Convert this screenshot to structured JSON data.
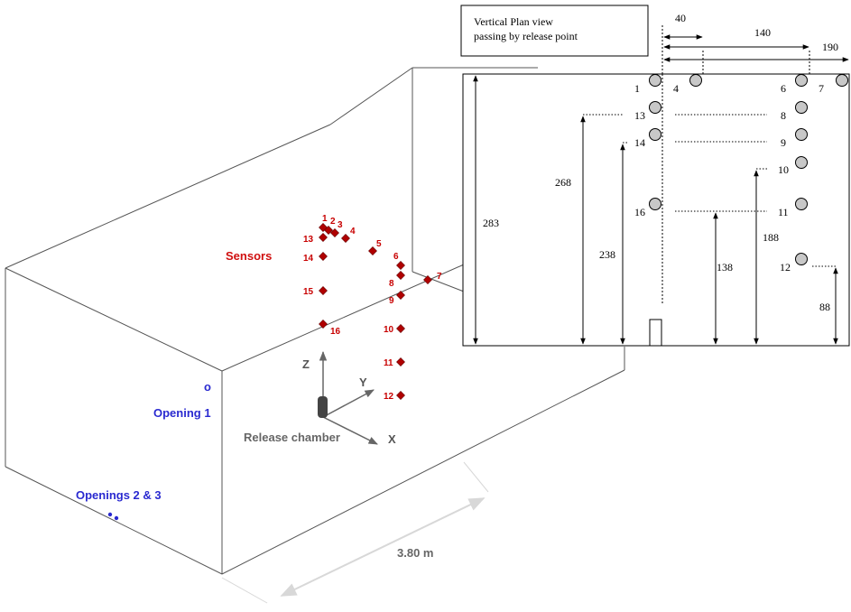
{
  "perspective": {
    "sensors_label": "Sensors",
    "sensor_numbers": [
      "1",
      "2",
      "3",
      "4",
      "5",
      "6",
      "7",
      "8",
      "9",
      "10",
      "11",
      "12",
      "13",
      "14",
      "15",
      "16"
    ],
    "axis_labels": {
      "z": "Z",
      "y": "Y",
      "x": "X"
    },
    "release_chamber_label": "Release chamber",
    "opening1_label": "Opening 1",
    "openings23_label": "Openings 2 & 3",
    "opening1_marker": "o",
    "dimension_label": "3.80 m",
    "colors": {
      "sensor": "#c80000",
      "sensor_fill": "#b00000",
      "opening": "#2a2ad0",
      "edge": "#555555",
      "axis": "#555555"
    }
  },
  "plan": {
    "title_line1": "Vertical Plan view",
    "title_line2": "passing by release point",
    "top_dims": [
      "40",
      "140",
      "190"
    ],
    "sensor_labels": [
      "1",
      "4",
      "6",
      "7",
      "13",
      "8",
      "14",
      "9",
      "10",
      "16",
      "11",
      "12"
    ],
    "height_labels": [
      "283",
      "268",
      "238",
      "138",
      "188",
      "88"
    ],
    "colors": {
      "circle_fill": "#c8c8c8",
      "stroke": "#000000"
    }
  }
}
